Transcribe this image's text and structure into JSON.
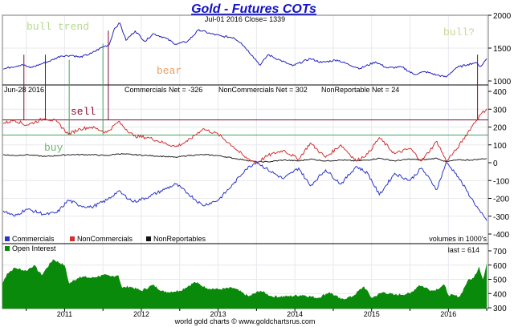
{
  "chart_data": {
    "type": "line",
    "title": "Gold - Futures COTs",
    "footer": "world gold charts © www.goldchartsrus.com",
    "x_tick_labels": [
      "2011",
      "2012",
      "2013",
      "2014",
      "2015",
      "2016"
    ],
    "xlim": [
      2010.19,
      2016.52
    ],
    "colors": {
      "title": "#1010c8",
      "price": "#2222bb",
      "commercials": "#2a35c8",
      "noncommercials": "#d03030",
      "nonreportables": "#222222",
      "open_interest": "#0a8a0a",
      "sell_line": "#7a1030",
      "buy_line": "#3aa860"
    },
    "price_panel": {
      "header": "Jul-01  2016   Close= 1339",
      "ylim": [
        1000,
        2000
      ],
      "y_tick_labels": [
        "2000",
        "1500",
        "1000"
      ],
      "annotations": {
        "bull_trend": "bull trend",
        "bear": "bear",
        "bull_q": "bull?"
      },
      "x": [
        2010.2,
        2010.3,
        2010.45,
        2010.55,
        2010.7,
        2010.8,
        2010.95,
        2011.1,
        2011.2,
        2011.35,
        2011.5,
        2011.58,
        2011.65,
        2011.72,
        2011.8,
        2011.92,
        2012.05,
        2012.15,
        2012.3,
        2012.45,
        2012.6,
        2012.75,
        2012.9,
        2013.05,
        2013.2,
        2013.3,
        2013.45,
        2013.55,
        2013.65,
        2013.8,
        2013.97,
        2014.2,
        2014.35,
        2014.55,
        2014.7,
        2014.85,
        2015.05,
        2015.2,
        2015.4,
        2015.55,
        2015.7,
        2015.85,
        2015.97,
        2016.1,
        2016.25,
        2016.35,
        2016.42,
        2016.5
      ],
      "y": [
        1180,
        1210,
        1250,
        1200,
        1260,
        1300,
        1380,
        1390,
        1360,
        1420,
        1520,
        1550,
        1800,
        1880,
        1620,
        1760,
        1600,
        1720,
        1660,
        1560,
        1600,
        1780,
        1720,
        1680,
        1660,
        1580,
        1380,
        1240,
        1400,
        1320,
        1230,
        1340,
        1280,
        1320,
        1250,
        1190,
        1290,
        1200,
        1210,
        1100,
        1140,
        1090,
        1060,
        1200,
        1250,
        1280,
        1220,
        1339
      ]
    },
    "cot_panel": {
      "header_date": "Jun-28  2016",
      "commercials_net": "Commercials Net = -326",
      "noncommercials_net": "NonCommercials Net = 302",
      "nonreportable_net": "NonReportable Net = 24",
      "ylim": [
        -400,
        400
      ],
      "y_tick_labels": [
        "400",
        "300",
        "200",
        "100",
        "0",
        "-100",
        "-200",
        "-300",
        "-400"
      ],
      "annotations": {
        "sell": "sell",
        "buy": "buy"
      },
      "sell_level": 240,
      "buy_level": 155,
      "signal_dates": {
        "sell": [
          2010.47,
          2010.75,
          2011.57,
          2016.38
        ],
        "buy": [
          2011.06,
          2011.5
        ]
      },
      "legend": [
        "Commercials",
        "NonCommercials",
        "NonReportables"
      ],
      "legend_position": "bottom-left",
      "units_note": "volumes in 1000's",
      "x": [
        2010.2,
        2010.35,
        2010.5,
        2010.75,
        2010.9,
        2011.05,
        2011.2,
        2011.35,
        2011.55,
        2011.7,
        2011.9,
        2012.1,
        2012.3,
        2012.45,
        2012.6,
        2012.8,
        2013.0,
        2013.2,
        2013.35,
        2013.5,
        2013.65,
        2013.85,
        2014.05,
        2014.2,
        2014.4,
        2014.6,
        2014.8,
        2014.95,
        2015.1,
        2015.3,
        2015.5,
        2015.65,
        2015.85,
        2015.97,
        2016.1,
        2016.3,
        2016.42,
        2016.5
      ],
      "commercials": [
        -270,
        -300,
        -260,
        -290,
        -280,
        -210,
        -240,
        -250,
        -210,
        -160,
        -220,
        -190,
        -150,
        -120,
        -170,
        -240,
        -210,
        -120,
        -40,
        5,
        -40,
        -90,
        -30,
        -130,
        -40,
        -120,
        -20,
        -60,
        -180,
        -60,
        -100,
        -30,
        -150,
        0,
        -60,
        -200,
        -280,
        -326
      ],
      "noncommercials": [
        220,
        240,
        210,
        250,
        230,
        160,
        190,
        200,
        170,
        230,
        150,
        140,
        110,
        90,
        120,
        190,
        160,
        90,
        30,
        0,
        40,
        70,
        20,
        110,
        30,
        100,
        10,
        50,
        140,
        50,
        80,
        10,
        120,
        10,
        70,
        200,
        270,
        302
      ],
      "nonreportables": [
        45,
        40,
        45,
        35,
        40,
        45,
        45,
        45,
        40,
        50,
        45,
        40,
        35,
        30,
        40,
        45,
        40,
        25,
        15,
        5,
        5,
        15,
        10,
        20,
        10,
        15,
        10,
        15,
        25,
        10,
        20,
        15,
        25,
        5,
        15,
        15,
        20,
        24
      ]
    },
    "oi_panel": {
      "legend": "Open Interest",
      "last": "last = 614",
      "ylim": [
        300,
        700
      ],
      "y_tick_labels": [
        "700",
        "600",
        "500",
        "400",
        "300"
      ],
      "x": [
        2010.19,
        2010.25,
        2010.35,
        2010.5,
        2010.6,
        2010.7,
        2010.85,
        2011.0,
        2011.06,
        2011.2,
        2011.35,
        2011.5,
        2011.6,
        2011.7,
        2011.75,
        2011.85,
        2012.0,
        2012.15,
        2012.3,
        2012.5,
        2012.7,
        2012.85,
        2013.0,
        2013.2,
        2013.4,
        2013.55,
        2013.7,
        2013.9,
        2014.1,
        2014.3,
        2014.45,
        2014.6,
        2014.75,
        2014.9,
        2015.0,
        2015.15,
        2015.3,
        2015.5,
        2015.62,
        2015.8,
        2015.95,
        2016.0,
        2016.15,
        2016.25,
        2016.33,
        2016.4,
        2016.45,
        2016.5
      ],
      "open_interest": [
        470,
        540,
        580,
        560,
        600,
        530,
        640,
        600,
        470,
        520,
        510,
        530,
        520,
        530,
        440,
        450,
        420,
        460,
        410,
        420,
        480,
        440,
        430,
        440,
        380,
        420,
        380,
        380,
        390,
        370,
        410,
        360,
        380,
        450,
        370,
        410,
        390,
        400,
        460,
        420,
        460,
        390,
        380,
        490,
        510,
        590,
        500,
        614
      ]
    }
  }
}
